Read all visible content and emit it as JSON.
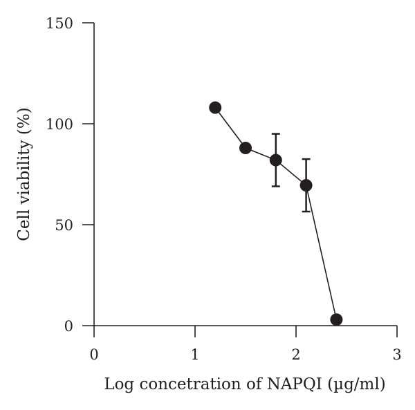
{
  "chart_data": {
    "type": "line",
    "title": "",
    "xlabel": "Log concetration of NAPQI (µg/ml)",
    "ylabel": "Cell viability (%)",
    "xlim": [
      0,
      3
    ],
    "ylim": [
      0,
      150
    ],
    "xticks": [
      0,
      1,
      2,
      3
    ],
    "yticks": [
      0,
      50,
      100,
      150
    ],
    "xtick_labels": [
      "0",
      "1",
      "2",
      "3"
    ],
    "ytick_labels": [
      "0",
      "50",
      "100",
      "150"
    ],
    "grid": false,
    "legend": "none",
    "series": [
      {
        "x": [
          1.2,
          1.5,
          1.8,
          2.1,
          2.4
        ],
        "y": [
          108,
          88,
          82,
          69.5,
          3
        ],
        "error": [
          null,
          null,
          13,
          13,
          null
        ],
        "color": "#231f20",
        "marker": "filled-circle"
      }
    ]
  }
}
